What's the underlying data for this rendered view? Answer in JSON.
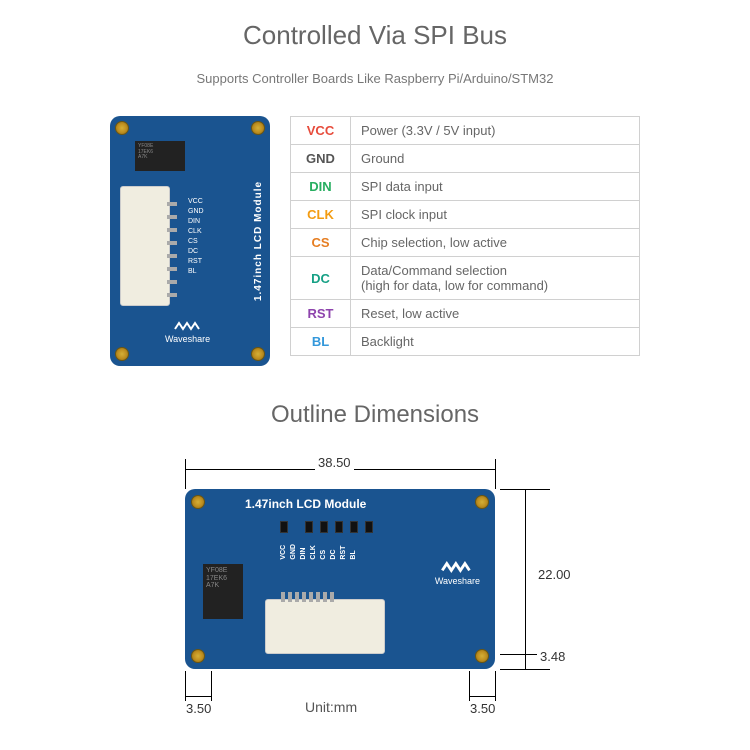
{
  "heading1": "Controlled Via SPI Bus",
  "subtitle": "Supports Controller Boards Like Raspberry Pi/Arduino/STM32",
  "module_label": "1.47inch LCD Module",
  "brand": "Waveshare",
  "chip_text": "YF08E\n17EK6\nA7K",
  "pin_names": [
    "VCC",
    "GND",
    "DIN",
    "CLK",
    "CS",
    "DC",
    "RST",
    "BL"
  ],
  "table": [
    {
      "pin": "VCC",
      "desc": "Power (3.3V / 5V input)",
      "color": "#e74c3c"
    },
    {
      "pin": "GND",
      "desc": "Ground",
      "color": "#555555"
    },
    {
      "pin": "DIN",
      "desc": "SPI data input",
      "color": "#27ae60"
    },
    {
      "pin": "CLK",
      "desc": "SPI clock input",
      "color": "#f39c12"
    },
    {
      "pin": "CS",
      "desc": "Chip selection, low active",
      "color": "#e67e22"
    },
    {
      "pin": "DC",
      "desc": "Data/Command selection\n(high for data, low for command)",
      "color": "#16a085"
    },
    {
      "pin": "RST",
      "desc": "Reset, low active",
      "color": "#8e44ad"
    },
    {
      "pin": "BL",
      "desc": "Backlight",
      "color": "#3498db"
    }
  ],
  "heading2": "Outline Dimensions",
  "dims": {
    "width": "38.50",
    "height": "22.00",
    "hole_offset_v": "3.48",
    "hole_offset_h_left": "3.50",
    "hole_offset_h_right": "3.50",
    "unit": "Unit:mm"
  }
}
